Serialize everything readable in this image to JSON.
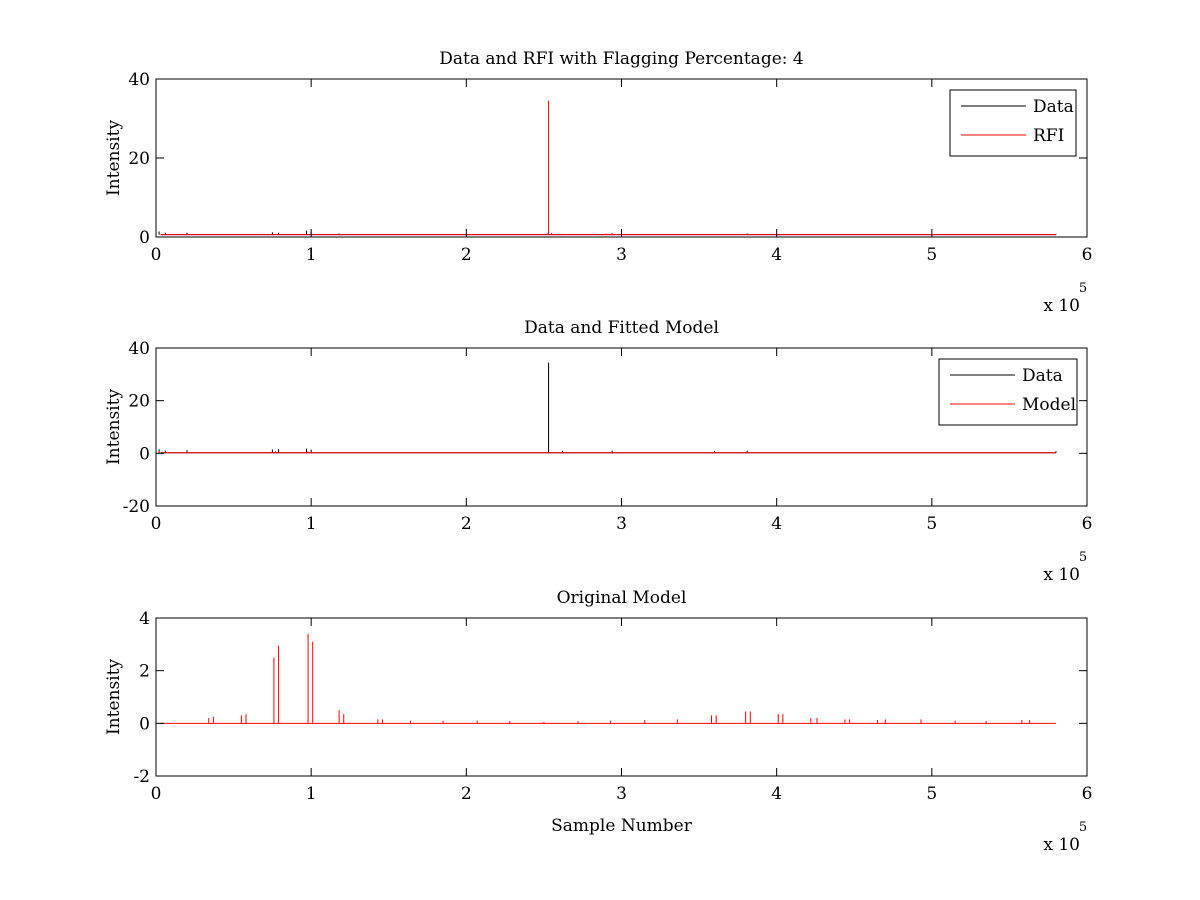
{
  "chart_data": [
    {
      "type": "line",
      "title": "Data and RFI with Flagging Percentage: 4",
      "xlabel": "",
      "ylabel": "Intensity",
      "xlim": [
        0,
        600000
      ],
      "ylim": [
        0,
        40
      ],
      "xticks": [
        0,
        1,
        2,
        3,
        4,
        5,
        6
      ],
      "yticks": [
        0,
        20,
        40
      ],
      "x_multiplier": "x 10",
      "x_multiplier_exp": "5",
      "grid": false,
      "legend_position": "top-right",
      "series": [
        {
          "name": "Data",
          "color": "#000000",
          "baseline": 0.6,
          "points": [
            [
              0,
              0.6
            ],
            [
              2000,
              1.4
            ],
            [
              6000,
              1.1
            ],
            [
              10000,
              0.7
            ],
            [
              20000,
              1.1
            ],
            [
              75000,
              1.2
            ],
            [
              79000,
              1.1
            ],
            [
              97000,
              1.6
            ],
            [
              100000,
              1.3
            ],
            [
              118000,
              0.9
            ],
            [
              381000,
              0.9
            ],
            [
              580000,
              0.8
            ]
          ]
        },
        {
          "name": "RFI",
          "color": "#ff0000",
          "baseline": 0.6,
          "points": [
            [
              252000,
              0.9
            ],
            [
              253000,
              34.5
            ],
            [
              255000,
              1.0
            ],
            [
              262000,
              0.8
            ],
            [
              290000,
              0.9
            ],
            [
              294000,
              1.0
            ],
            [
              298000,
              0.8
            ]
          ]
        }
      ]
    },
    {
      "type": "line",
      "title": "Data and Fitted Model",
      "xlabel": "",
      "ylabel": "Intensity",
      "xlim": [
        0,
        600000
      ],
      "ylim": [
        -20,
        40
      ],
      "xticks": [
        0,
        1,
        2,
        3,
        4,
        5,
        6
      ],
      "yticks": [
        -20,
        0,
        20,
        40
      ],
      "x_multiplier": "x 10",
      "x_multiplier_exp": "5",
      "grid": false,
      "legend_position": "top-right",
      "series": [
        {
          "name": "Data",
          "color": "#000000",
          "baseline": 0.2,
          "points": [
            [
              2000,
              1.5
            ],
            [
              6000,
              1.0
            ],
            [
              20000,
              1.2
            ],
            [
              75000,
              1.5
            ],
            [
              79000,
              1.6
            ],
            [
              97000,
              1.8
            ],
            [
              100000,
              1.4
            ],
            [
              253000,
              34.5
            ],
            [
              262000,
              1.0
            ],
            [
              294000,
              1.0
            ],
            [
              360000,
              0.8
            ],
            [
              381000,
              1.0
            ],
            [
              580000,
              0.8
            ]
          ]
        },
        {
          "name": "Model",
          "color": "#ff0000",
          "baseline": 0.2,
          "points": [
            [
              2000,
              0.8
            ],
            [
              20000,
              0.6
            ],
            [
              77000,
              0.8
            ],
            [
              98000,
              0.7
            ],
            [
              262000,
              0.4
            ],
            [
              381000,
              0.4
            ]
          ]
        }
      ]
    },
    {
      "type": "line",
      "title": "Original Model",
      "xlabel": "Sample Number",
      "ylabel": "Intensity",
      "xlim": [
        0,
        600000
      ],
      "ylim": [
        -2,
        4
      ],
      "xticks": [
        0,
        1,
        2,
        3,
        4,
        5,
        6
      ],
      "yticks": [
        -2,
        0,
        2,
        4
      ],
      "x_multiplier": "x 10",
      "x_multiplier_exp": "5",
      "grid": false,
      "legend_position": "none",
      "series": [
        {
          "name": "",
          "color": "#ff0000",
          "baseline": 0,
          "points": [
            [
              34000,
              0.2
            ],
            [
              37000,
              0.25
            ],
            [
              55000,
              0.3
            ],
            [
              58000,
              0.35
            ],
            [
              76000,
              2.5
            ],
            [
              79000,
              2.95
            ],
            [
              98000,
              3.4
            ],
            [
              101000,
              3.1
            ],
            [
              118000,
              0.5
            ],
            [
              121000,
              0.35
            ],
            [
              143000,
              0.15
            ],
            [
              146000,
              0.15
            ],
            [
              164000,
              0.1
            ],
            [
              185000,
              0.1
            ],
            [
              207000,
              0.1
            ],
            [
              228000,
              0.08
            ],
            [
              250000,
              0.05
            ],
            [
              272000,
              0.08
            ],
            [
              293000,
              0.1
            ],
            [
              315000,
              0.12
            ],
            [
              336000,
              0.15
            ],
            [
              358000,
              0.3
            ],
            [
              361000,
              0.3
            ],
            [
              380000,
              0.45
            ],
            [
              383000,
              0.45
            ],
            [
              401000,
              0.35
            ],
            [
              404000,
              0.35
            ],
            [
              422000,
              0.2
            ],
            [
              426000,
              0.2
            ],
            [
              444000,
              0.15
            ],
            [
              447000,
              0.15
            ],
            [
              465000,
              0.12
            ],
            [
              470000,
              0.15
            ],
            [
              493000,
              0.15
            ],
            [
              515000,
              0.1
            ],
            [
              535000,
              0.08
            ],
            [
              558000,
              0.12
            ],
            [
              563000,
              0.12
            ]
          ]
        }
      ]
    }
  ]
}
